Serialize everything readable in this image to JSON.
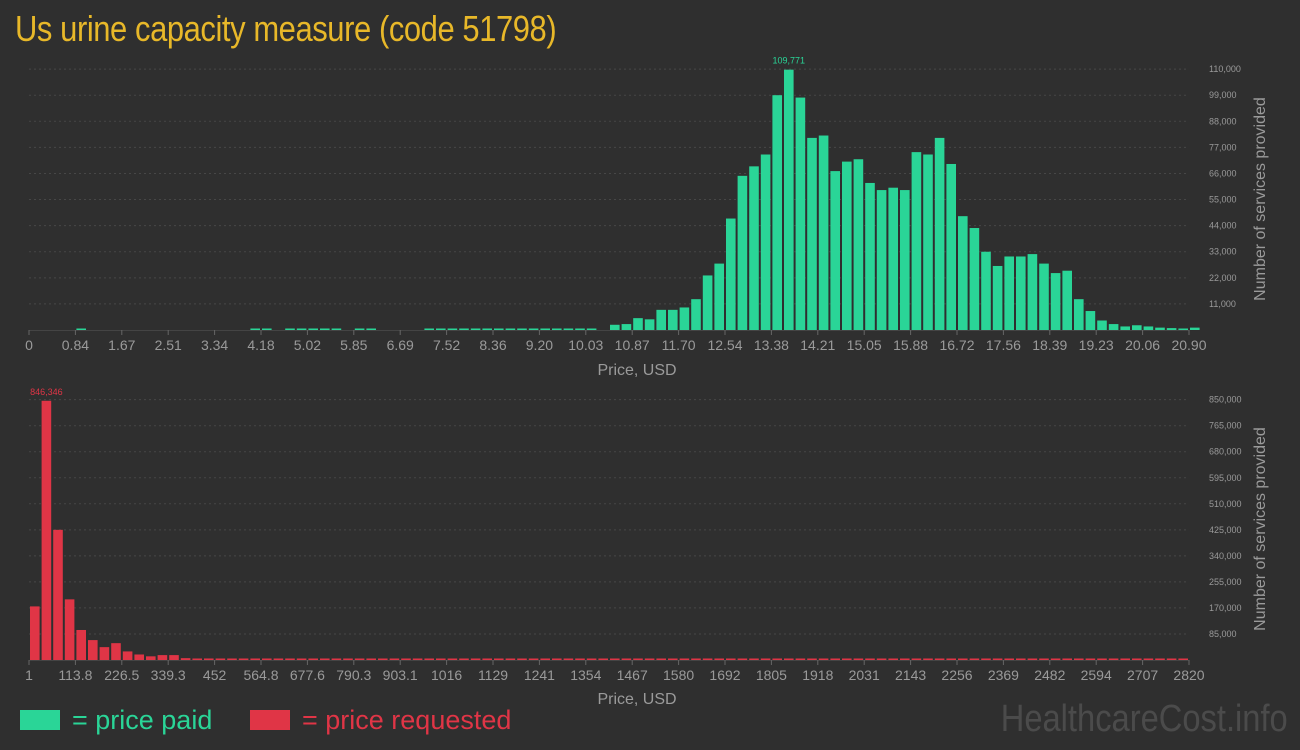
{
  "title": "Us urine capacity measure (code 51798)",
  "watermark": "HealthcareCost.info",
  "legend": {
    "paid_label": "= price paid",
    "requested_label": "= price requested",
    "paid_color": "#2ad597",
    "requested_color": "#e03546"
  },
  "chart_data": [
    {
      "type": "bar",
      "name": "price-paid",
      "xlabel": "Price, USD",
      "ylabel": "Number of services provided",
      "color": "#2ad597",
      "xlim": [
        0,
        20.9
      ],
      "ylim": [
        0,
        113000
      ],
      "x_ticks": [
        "0",
        "0.84",
        "1.67",
        "2.51",
        "3.34",
        "4.18",
        "5.02",
        "5.85",
        "6.69",
        "7.52",
        "8.36",
        "9.20",
        "10.03",
        "10.87",
        "11.70",
        "12.54",
        "13.38",
        "14.21",
        "15.05",
        "15.88",
        "16.72",
        "17.56",
        "18.39",
        "19.23",
        "20.06",
        "20.90"
      ],
      "y_ticks": [
        11000,
        22000,
        33000,
        44000,
        55000,
        66000,
        77000,
        88000,
        99000,
        110000
      ],
      "y_tick_labels": [
        "11,000",
        "22,000",
        "33,000",
        "44,000",
        "55,000",
        "66,000",
        "77,000",
        "88,000",
        "99,000",
        "110,000"
      ],
      "peak_label": "109,771",
      "bin_width": 0.209,
      "values": [
        0,
        0,
        0,
        0,
        300,
        0,
        0,
        0,
        0,
        0,
        0,
        0,
        0,
        0,
        0,
        0,
        0,
        0,
        0,
        150,
        250,
        0,
        200,
        300,
        300,
        200,
        300,
        0,
        200,
        200,
        0,
        0,
        0,
        0,
        200,
        250,
        250,
        200,
        200,
        300,
        500,
        300,
        300,
        300,
        200,
        300,
        400,
        200,
        300,
        0,
        2200,
        2500,
        5000,
        4500,
        8500,
        8500,
        9500,
        13000,
        23000,
        28000,
        47000,
        65000,
        69000,
        74000,
        99000,
        109771,
        98000,
        81000,
        82000,
        67000,
        71000,
        72000,
        62000,
        59000,
        60000,
        59000,
        75000,
        74000,
        81000,
        70000,
        48000,
        43000,
        33000,
        27000,
        31000,
        31000,
        32000,
        28000,
        24000,
        25000,
        13000,
        8000,
        4000,
        2500,
        1500,
        2000,
        1500,
        1000,
        800,
        600,
        1000
      ]
    },
    {
      "type": "bar",
      "name": "price-requested",
      "xlabel": "Price, USD",
      "ylabel": "Number of services provided",
      "color": "#e03546",
      "xlim": [
        1,
        2820
      ],
      "ylim": [
        0,
        875000
      ],
      "x_ticks": [
        "1",
        "113.8",
        "226.5",
        "339.3",
        "452",
        "564.8",
        "677.6",
        "790.3",
        "903.1",
        "1016",
        "1129",
        "1241",
        "1354",
        "1467",
        "1580",
        "1692",
        "1805",
        "1918",
        "2031",
        "2143",
        "2256",
        "2369",
        "2482",
        "2594",
        "2707",
        "2820"
      ],
      "y_ticks": [
        85000,
        170000,
        255000,
        340000,
        425000,
        510000,
        595000,
        680000,
        765000,
        850000
      ],
      "y_tick_labels": [
        "85,000",
        "170,000",
        "255,000",
        "340,000",
        "425,000",
        "510,000",
        "595,000",
        "680,000",
        "765,000",
        "850,000"
      ],
      "peak_label": "846,346",
      "bin_width": 28.19,
      "values": [
        175000,
        846346,
        425000,
        198000,
        98000,
        65000,
        42000,
        55000,
        28000,
        18000,
        12000,
        16000,
        16000,
        6000,
        3500,
        5000,
        2500,
        1500,
        2000,
        2500,
        3000,
        3500,
        2000,
        1000,
        3000,
        1500,
        1000,
        2000,
        1500,
        500,
        800,
        500,
        400,
        300,
        1500,
        200,
        1000,
        500,
        200,
        300,
        400,
        300,
        200,
        200,
        200,
        100,
        100,
        100,
        300,
        300,
        100,
        100,
        100,
        200,
        200,
        100,
        100,
        100,
        100,
        200,
        100,
        100,
        100,
        100,
        100,
        100,
        100,
        100,
        100,
        100,
        100,
        100,
        100,
        100,
        100,
        100,
        100,
        100,
        100,
        100,
        100,
        100,
        100,
        100,
        100,
        100,
        100,
        100,
        100,
        100,
        100,
        100,
        100,
        100,
        100,
        100,
        100,
        100,
        100,
        100
      ]
    }
  ]
}
